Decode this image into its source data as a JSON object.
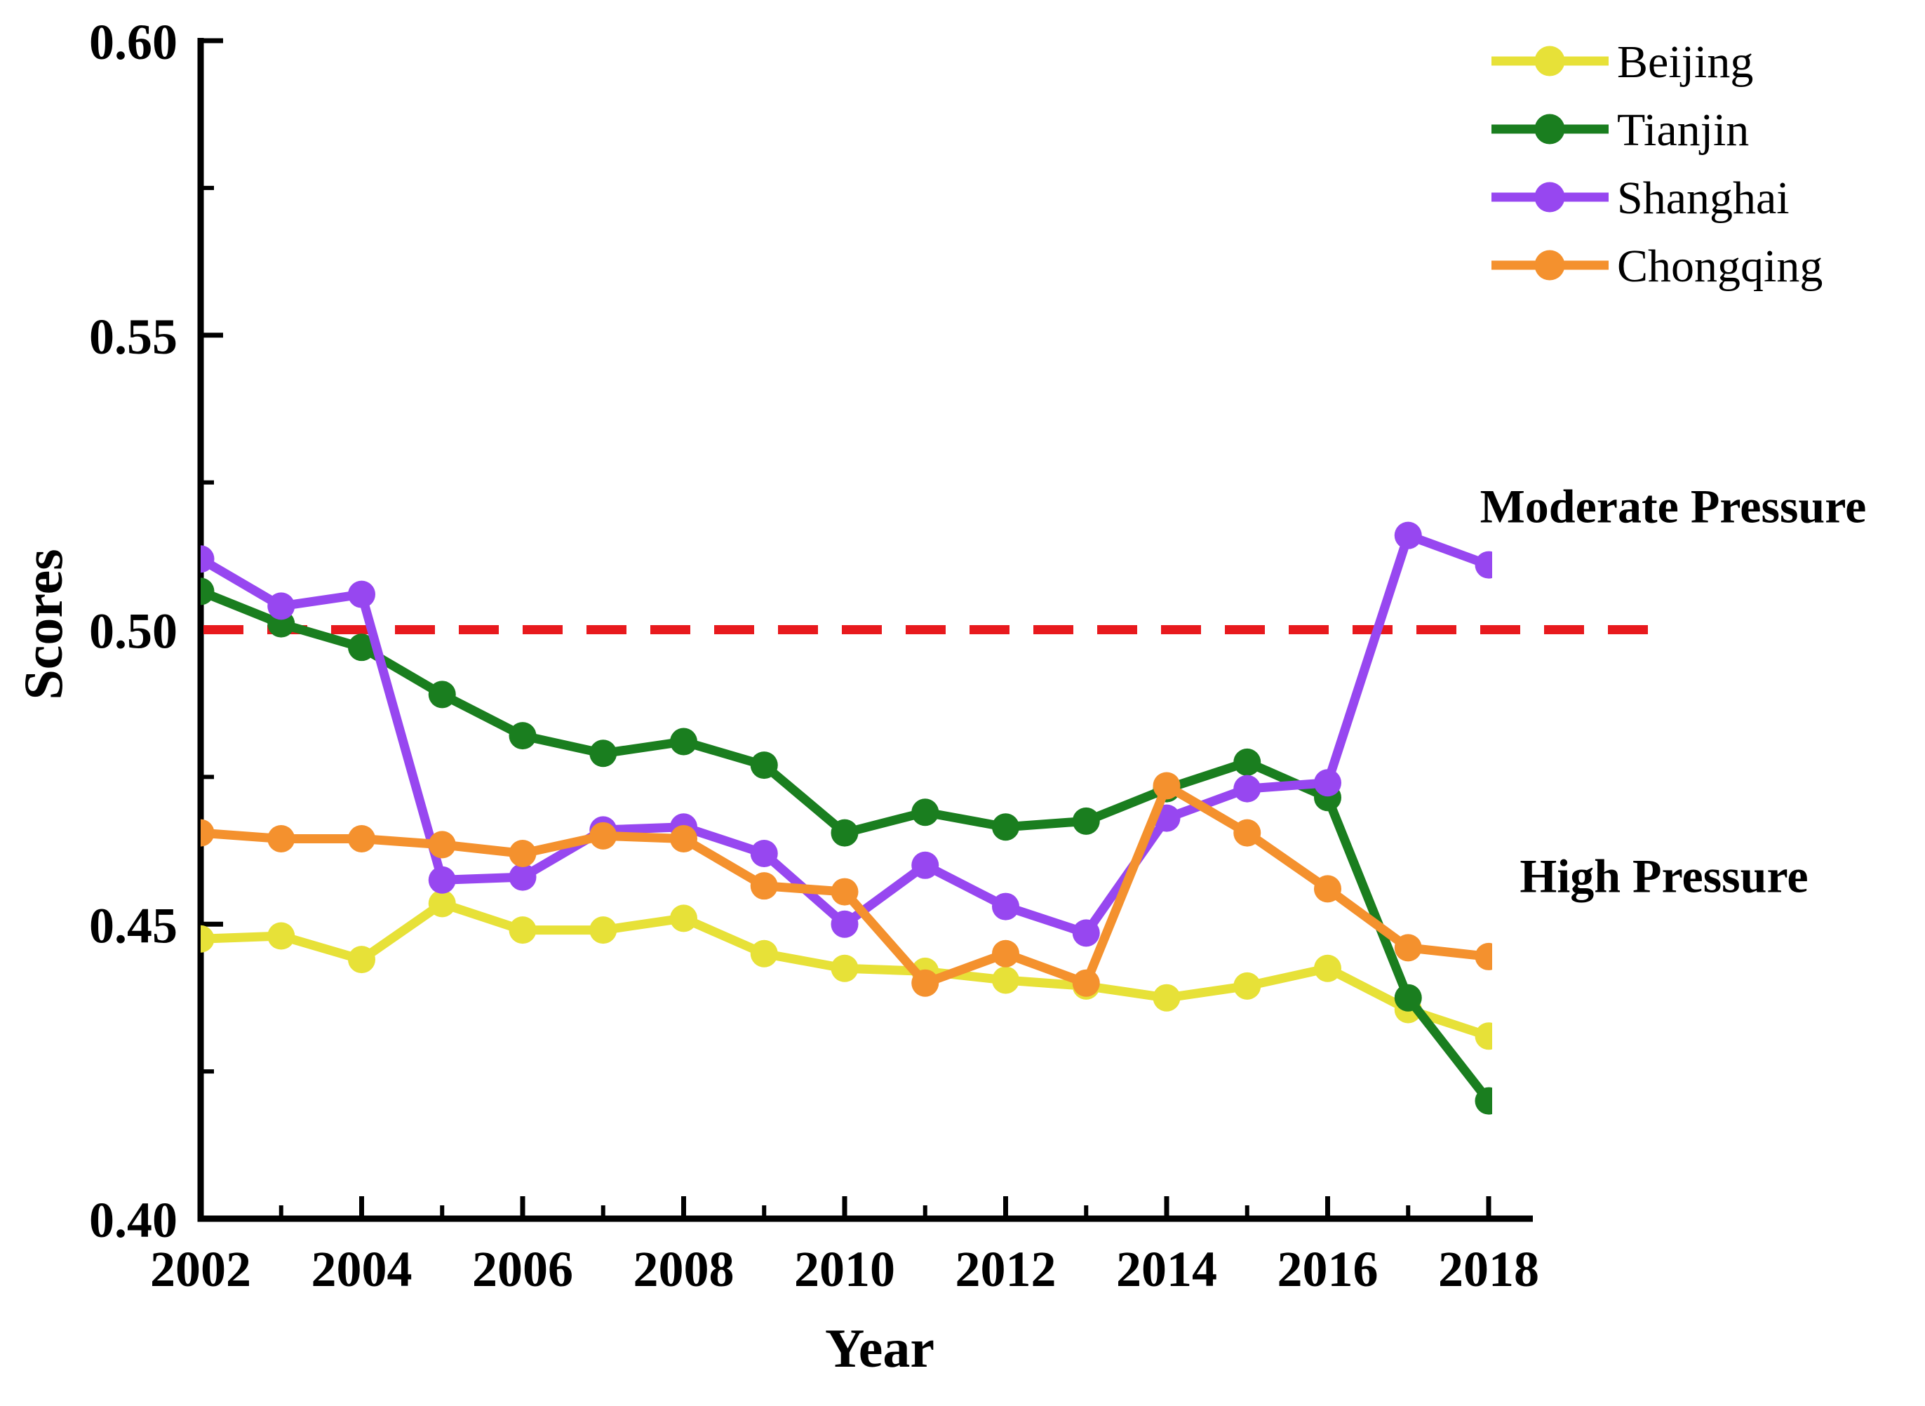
{
  "page": {
    "background": "#ffffff"
  },
  "chart_data": {
    "type": "line",
    "title": "",
    "xlabel": "Year",
    "ylabel": "Scores",
    "xlim": [
      2002,
      2018
    ],
    "ylim": [
      0.4,
      0.6
    ],
    "grid": false,
    "x": [
      2002,
      2003,
      2004,
      2005,
      2006,
      2007,
      2008,
      2009,
      2010,
      2011,
      2012,
      2013,
      2014,
      2015,
      2016,
      2017,
      2018
    ],
    "series": [
      {
        "name": "Beijing",
        "color": "#E7E138",
        "marker": "circle",
        "values": [
          0.4475,
          0.448,
          0.444,
          0.4535,
          0.449,
          0.449,
          0.451,
          0.445,
          0.4425,
          0.442,
          0.4405,
          0.4395,
          0.4375,
          0.4395,
          0.4425,
          0.4355,
          0.431
        ]
      },
      {
        "name": "Tianjin",
        "color": "#1A7E1F",
        "marker": "circle",
        "values": [
          0.5065,
          0.501,
          0.497,
          0.489,
          0.482,
          0.479,
          0.481,
          0.477,
          0.4655,
          0.469,
          0.4665,
          0.4675,
          0.473,
          0.4775,
          0.4715,
          0.4375,
          0.42
        ]
      },
      {
        "name": "Shanghai",
        "color": "#9747F0",
        "marker": "circle",
        "values": [
          0.512,
          0.504,
          0.506,
          0.4575,
          0.458,
          0.466,
          0.4665,
          0.462,
          0.45,
          0.46,
          0.453,
          0.4485,
          0.468,
          0.473,
          0.474,
          0.516,
          0.511
        ]
      },
      {
        "name": "Chongqing",
        "color": "#F4912E",
        "marker": "circle",
        "values": [
          0.4655,
          0.4645,
          0.4645,
          0.4635,
          0.462,
          0.465,
          0.4645,
          0.4565,
          0.4555,
          0.44,
          0.445,
          0.44,
          0.4735,
          0.4655,
          0.456,
          0.446,
          0.4445
        ]
      }
    ],
    "yticks_major": [
      0.6,
      0.55,
      0.5,
      0.45,
      0.4
    ],
    "ytick_labels": [
      "0.60",
      "0.55",
      "0.50",
      "0.45",
      "0.40"
    ],
    "yticks_minor": [
      0.575,
      0.525,
      0.475,
      0.425
    ],
    "xticks_major": [
      2002,
      2004,
      2006,
      2008,
      2010,
      2012,
      2014,
      2016,
      2018
    ],
    "xtick_labels": [
      "2002",
      "2004",
      "2006",
      "2008",
      "2010",
      "2012",
      "2014",
      "2016",
      "2018"
    ],
    "xticks_minor": [
      2003,
      2005,
      2007,
      2009,
      2011,
      2013,
      2015,
      2017
    ],
    "reference_line": {
      "value": 0.5,
      "color": "#E8191D",
      "style": "dashed"
    },
    "legend": {
      "position": "top-right",
      "entries": [
        "Beijing",
        "Tianjin",
        "Shanghai",
        "Chongqing"
      ]
    },
    "annotations": [
      {
        "text": "Moderate Pressure",
        "position": "right-of-plot-above-reference-line"
      },
      {
        "text": "High Pressure",
        "position": "right-of-plot-below-reference-line"
      }
    ]
  }
}
